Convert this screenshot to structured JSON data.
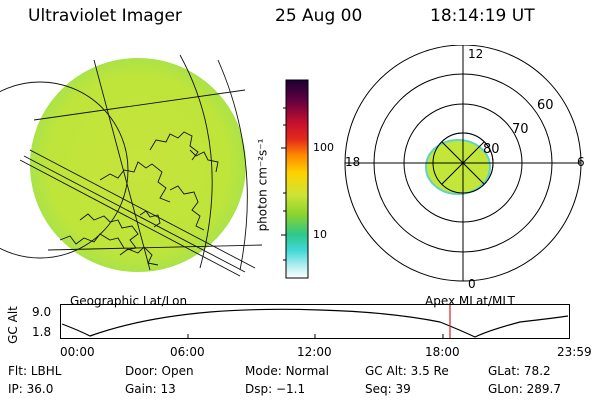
{
  "header": {
    "instrument": "Ultraviolet Imager",
    "date": "25 Aug 00",
    "time": "18:14:19 UT"
  },
  "colorbar": {
    "unit_label": "photon cm⁻²s⁻¹",
    "ticks": [
      "100",
      "10"
    ]
  },
  "polar": {
    "mlt_labels": {
      "top": "12",
      "left": "18",
      "right": "6",
      "bottom": "0"
    },
    "lat_labels": [
      "60",
      "70",
      "80"
    ]
  },
  "panel_labels": {
    "left": "Geographic Lat/Lon",
    "right": "Apex MLat/MLT"
  },
  "altitude_plot": {
    "ylabel": "GC Alt",
    "yticks": [
      "9.0",
      "1.8"
    ],
    "xticks": [
      "00:00",
      "06:00",
      "12:00",
      "18:00",
      "23:59"
    ],
    "marker_time": "18:14",
    "marker_color": "#e02020"
  },
  "info": {
    "row1": [
      {
        "key": "Flt:",
        "value": "LBHL"
      },
      {
        "key": "Door:",
        "value": "Open"
      },
      {
        "key": "Mode:",
        "value": "Normal"
      },
      {
        "key": "GC Alt:",
        "value": "3.5 Re"
      },
      {
        "key": "GLat:",
        "value": "78.2"
      }
    ],
    "row2": [
      {
        "key": "IP:",
        "value": "36.0"
      },
      {
        "key": "Gain:",
        "value": "13"
      },
      {
        "key": "Dsp:",
        "value": "−1.1"
      },
      {
        "key": "Seq:",
        "value": "39"
      },
      {
        "key": "GLon:",
        "value": "289.7"
      }
    ]
  },
  "colors": {
    "emission": "#c2e63a",
    "emission_edge": "#5fd3c8"
  }
}
